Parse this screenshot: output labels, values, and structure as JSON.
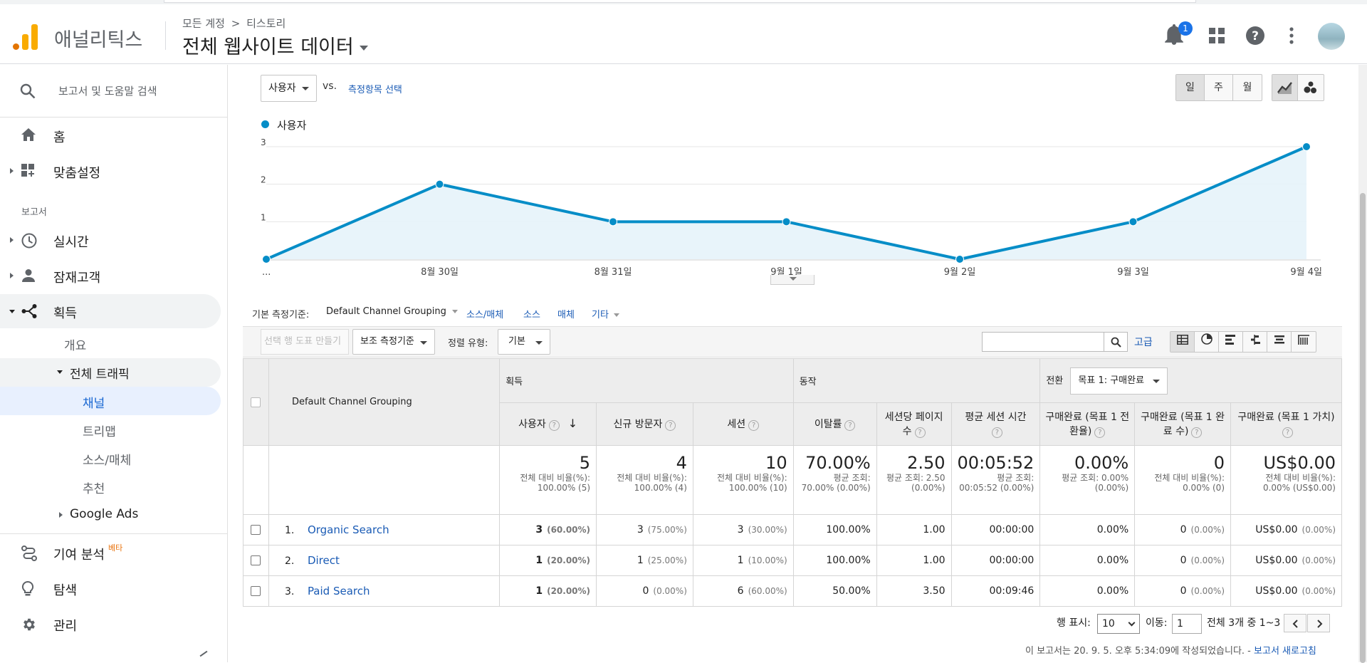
{
  "header": {
    "brand": "애널리틱스",
    "breadcrumb_account": "모든 계정",
    "breadcrumb_arrow": ">",
    "breadcrumb_property": "티스토리",
    "view_title": "전체 웹사이트 데이터",
    "notification_count": "1"
  },
  "sidebar": {
    "search_placeholder": "보고서 및 도움말 검색",
    "home": "홈",
    "customization": "맞춤설정",
    "reports_section": "보고서",
    "realtime": "실시간",
    "audience": "잠재고객",
    "acquisition": "획득",
    "overview": "개요",
    "all_traffic": "전체 트래픽",
    "channels": "채널",
    "treemaps": "트리맵",
    "source_medium": "소스/매체",
    "referrals": "추천",
    "google_ads": "Google Ads",
    "attribution": "기여 분석",
    "attribution_badge": "베타",
    "discover": "탐색",
    "admin": "관리"
  },
  "chart_controls": {
    "metric": "사용자",
    "vs": "vs.",
    "select_metric": "측정항목 선택",
    "day": "일",
    "week": "주",
    "month": "월"
  },
  "chart_data": {
    "type": "line",
    "series": [
      {
        "name": "사용자",
        "values": [
          0,
          2,
          1,
          1,
          0,
          1,
          3
        ]
      }
    ],
    "categories": [
      "...",
      "8월 30일",
      "8월 31일",
      "9월 1일",
      "9월 2일",
      "9월 3일",
      "9월 4일"
    ],
    "yticks": [
      "1",
      "2",
      "3"
    ],
    "ylim": [
      0,
      3
    ],
    "color": "#058dc7",
    "fill": "#e6f3fa",
    "grid": true
  },
  "dimension_bar": {
    "label": "기본 측정기준:",
    "primary": "Default Channel Grouping",
    "links": [
      "소스/매체",
      "소스",
      "매체",
      "기타"
    ]
  },
  "toolbar": {
    "plot_rows": "선택 행 도표 만들기",
    "secondary": "보조 측정기준",
    "sort_label": "정렬 유형:",
    "sort_value": "기본",
    "advanced": "고급"
  },
  "table": {
    "dim_header": "Default Channel Grouping",
    "groups": {
      "acquisition": "획득",
      "behavior": "동작",
      "conversions": "전환",
      "goal": "목표 1: 구매완료"
    },
    "columns": [
      "사용자",
      "신규 방문자",
      "세션",
      "이탈률",
      "세션당 페이지수",
      "평균 세션 시간",
      "구매완료 (목표 1 전환율)",
      "구매완료 (목표 1 완료 수)",
      "구매완료 (목표 1 가치)"
    ],
    "totals": [
      {
        "big": "5",
        "sub": "전체 대비 비율(%): 100.00% (5)"
      },
      {
        "big": "4",
        "sub": "전체 대비 비율(%): 100.00% (4)"
      },
      {
        "big": "10",
        "sub": "전체 대비 비율(%): 100.00% (10)"
      },
      {
        "big": "70.00%",
        "sub": "평균 조회: 70.00% (0.00%)"
      },
      {
        "big": "2.50",
        "sub": "평균 조회: 2.50 (0.00%)"
      },
      {
        "big": "00:05:52",
        "sub": "평균 조회: 00:05:52 (0.00%)"
      },
      {
        "big": "0.00%",
        "sub": "평균 조회: 0.00% (0.00%)"
      },
      {
        "big": "0",
        "sub": "전체 대비 비율(%): 0.00% (0)"
      },
      {
        "big": "US$0.00",
        "sub": "전체 대비 비율(%): 0.00% (US$0.00)"
      }
    ],
    "rows": [
      {
        "idx": "1.",
        "name": "Organic Search",
        "users": "3",
        "users_pct": "(60.00%)",
        "new": "3",
        "new_pct": "(75.00%)",
        "sessions": "3",
        "sessions_pct": "(30.00%)",
        "bounce": "100.00%",
        "pps": "1.00",
        "dur": "00:00:00",
        "conv": "0.00%",
        "comp": "0",
        "comp_pct": "(0.00%)",
        "value": "US$0.00",
        "value_pct": "(0.00%)"
      },
      {
        "idx": "2.",
        "name": "Direct",
        "users": "1",
        "users_pct": "(20.00%)",
        "new": "1",
        "new_pct": "(25.00%)",
        "sessions": "1",
        "sessions_pct": "(10.00%)",
        "bounce": "100.00%",
        "pps": "1.00",
        "dur": "00:00:00",
        "conv": "0.00%",
        "comp": "0",
        "comp_pct": "(0.00%)",
        "value": "US$0.00",
        "value_pct": "(0.00%)"
      },
      {
        "idx": "3.",
        "name": "Paid Search",
        "users": "1",
        "users_pct": "(20.00%)",
        "new": "0",
        "new_pct": "(0.00%)",
        "sessions": "6",
        "sessions_pct": "(60.00%)",
        "bounce": "50.00%",
        "pps": "3.50",
        "dur": "00:09:46",
        "conv": "0.00%",
        "comp": "0",
        "comp_pct": "(0.00%)",
        "value": "US$0.00",
        "value_pct": "(0.00%)"
      }
    ]
  },
  "pagination": {
    "rows_label": "행 표시:",
    "rows_value": "10",
    "goto_label": "이동:",
    "goto_value": "1",
    "summary": "전체 3개 중 1~3"
  },
  "footer": {
    "text": "이 보고서는 20. 9. 5. 오후 5:34:09에 작성되었습니다. -",
    "refresh": "보고서 새로고침"
  }
}
